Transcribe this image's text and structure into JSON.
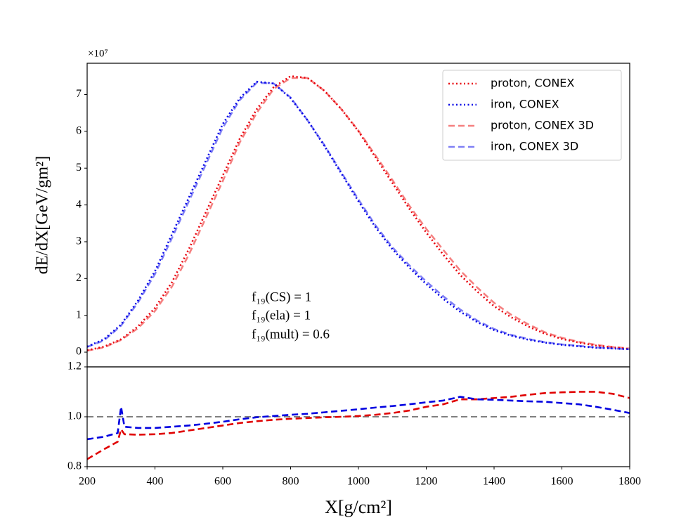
{
  "chart_data": [
    {
      "type": "line",
      "multiplier": "×10⁷",
      "ylabel": "dE/dX[GeV/gm²]",
      "xlim": [
        200,
        1800
      ],
      "ylim": [
        -0.4,
        7.85
      ],
      "yticks": [
        0,
        1,
        2,
        3,
        4,
        5,
        6,
        7
      ],
      "legend": "upper right",
      "annotations": [
        "f₁₉(CS) = 1",
        "f₁₉(ela) = 1",
        "f₁₉(mult) = 0.6"
      ],
      "x": [
        200,
        250,
        300,
        350,
        400,
        450,
        500,
        550,
        600,
        650,
        700,
        750,
        800,
        850,
        900,
        950,
        1000,
        1050,
        1100,
        1150,
        1200,
        1250,
        1300,
        1350,
        1400,
        1450,
        1500,
        1550,
        1600,
        1650,
        1700,
        1750,
        1800
      ],
      "series": [
        {
          "name": "proton, CONEX",
          "color": "#e8000b",
          "linestyle": "dotted",
          "values": [
            0.05,
            0.15,
            0.35,
            0.7,
            1.2,
            1.9,
            2.8,
            3.8,
            4.8,
            5.8,
            6.6,
            7.2,
            7.5,
            7.45,
            7.1,
            6.6,
            6.0,
            5.3,
            4.6,
            3.9,
            3.25,
            2.65,
            2.1,
            1.65,
            1.25,
            0.95,
            0.7,
            0.5,
            0.36,
            0.26,
            0.18,
            0.13,
            0.09
          ]
        },
        {
          "name": "iron, CONEX",
          "color": "#0000e6",
          "linestyle": "dotted",
          "values": [
            0.15,
            0.35,
            0.75,
            1.4,
            2.2,
            3.2,
            4.2,
            5.2,
            6.2,
            6.9,
            7.35,
            7.3,
            6.9,
            6.3,
            5.6,
            4.85,
            4.1,
            3.4,
            2.8,
            2.3,
            1.85,
            1.45,
            1.1,
            0.82,
            0.6,
            0.45,
            0.34,
            0.26,
            0.2,
            0.16,
            0.12,
            0.1,
            0.08
          ]
        },
        {
          "name": "proton, CONEX 3D",
          "color": "#f58080",
          "linestyle": "dashed",
          "values": [
            0.04,
            0.13,
            0.33,
            0.65,
            1.12,
            1.78,
            2.65,
            3.65,
            4.65,
            5.7,
            6.5,
            7.15,
            7.45,
            7.45,
            7.1,
            6.6,
            6.02,
            5.35,
            4.68,
            3.98,
            3.35,
            2.78,
            2.22,
            1.76,
            1.34,
            1.02,
            0.76,
            0.54,
            0.39,
            0.28,
            0.2,
            0.14,
            0.1
          ]
        },
        {
          "name": "iron, CONEX 3D",
          "color": "#8080f5",
          "linestyle": "dashed",
          "values": [
            0.14,
            0.32,
            0.72,
            1.35,
            2.12,
            3.1,
            4.1,
            5.1,
            6.1,
            6.85,
            7.32,
            7.3,
            6.92,
            6.3,
            5.62,
            4.88,
            4.15,
            3.45,
            2.85,
            2.36,
            1.92,
            1.52,
            1.16,
            0.86,
            0.63,
            0.47,
            0.36,
            0.27,
            0.21,
            0.17,
            0.13,
            0.1,
            0.08
          ]
        }
      ]
    },
    {
      "type": "line",
      "xlabel": "X[g/cm²]",
      "xlim": [
        200,
        1800
      ],
      "ylim": [
        0.8,
        1.2
      ],
      "xticks": [
        200,
        400,
        600,
        800,
        1000,
        1200,
        1400,
        1600,
        1800
      ],
      "yticks": [
        {
          "value": 0.8,
          "label": "0.8"
        },
        {
          "value": 1.0,
          "label": "1.0"
        },
        {
          "value": 1.2,
          "label": "1.2"
        }
      ],
      "reference_line": {
        "value": 1.0,
        "color": "#808080",
        "linestyle": "dashed"
      },
      "x": [
        200,
        250,
        290,
        300,
        310,
        350,
        400,
        450,
        500,
        550,
        600,
        650,
        700,
        750,
        800,
        850,
        900,
        950,
        1000,
        1050,
        1100,
        1150,
        1200,
        1250,
        1300,
        1350,
        1400,
        1450,
        1500,
        1550,
        1600,
        1650,
        1700,
        1750,
        1800
      ],
      "series": [
        {
          "color": "#e00000",
          "linestyle": "dashed",
          "values": [
            0.83,
            0.87,
            0.9,
            0.95,
            0.93,
            0.928,
            0.93,
            0.935,
            0.945,
            0.955,
            0.965,
            0.975,
            0.982,
            0.988,
            0.992,
            0.995,
            0.998,
            1.0,
            1.003,
            1.008,
            1.015,
            1.025,
            1.04,
            1.05,
            1.07,
            1.07,
            1.075,
            1.08,
            1.088,
            1.095,
            1.098,
            1.1,
            1.1,
            1.092,
            1.075
          ]
        },
        {
          "color": "#0000e0",
          "linestyle": "dashed",
          "values": [
            0.91,
            0.92,
            0.935,
            1.04,
            0.96,
            0.955,
            0.955,
            0.96,
            0.965,
            0.972,
            0.98,
            0.99,
            0.998,
            1.003,
            1.008,
            1.012,
            1.018,
            1.024,
            1.03,
            1.037,
            1.043,
            1.05,
            1.058,
            1.065,
            1.08,
            1.07,
            1.068,
            1.065,
            1.062,
            1.06,
            1.055,
            1.05,
            1.04,
            1.028,
            1.015
          ]
        }
      ]
    }
  ]
}
